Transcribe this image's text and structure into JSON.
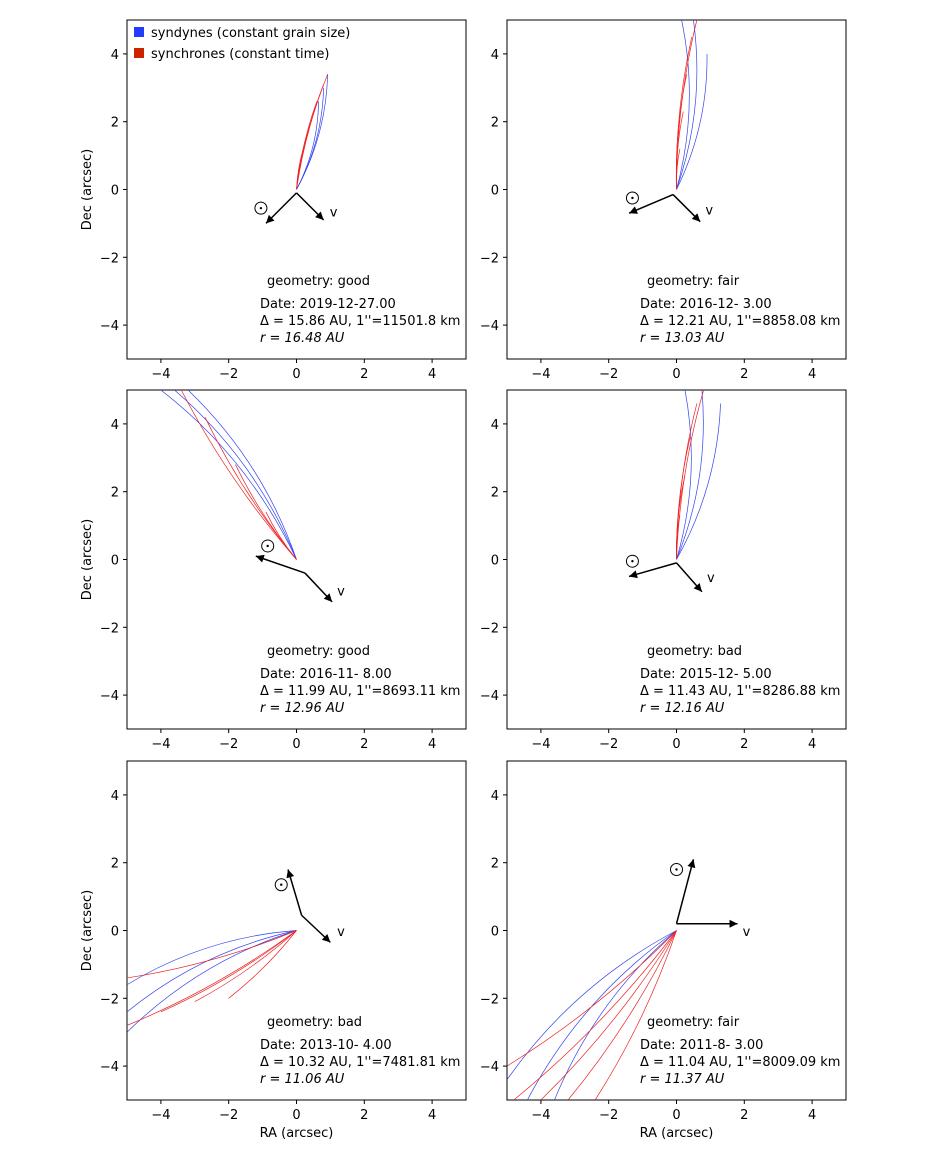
{
  "legend": {
    "items": [
      {
        "label": "syndynes (constant grain size)",
        "color": "#1f3cff"
      },
      {
        "label": "synchrones (constant time)",
        "color": "#cc2200"
      }
    ],
    "placement": "upper-left of first panel"
  },
  "colors": {
    "syndyne": "#3344ee",
    "synchrone": "#ee2222"
  },
  "velocity_label": "v",
  "sun_symbol": "sun-symbol",
  "chart_data": [
    {
      "type": "line",
      "xlabel": "",
      "ylabel": "Dec  (arcsec)",
      "xlim": [
        -5,
        5
      ],
      "ylim": [
        -5,
        5
      ],
      "xticks": [
        "−4",
        "−2",
        "0",
        "2",
        "4"
      ],
      "yticks": [
        "−4",
        "−2",
        "0",
        "2",
        "4"
      ],
      "geometry": "geometry: good",
      "date": "Date: 2019-12-27.00",
      "delta": "Δ =  15.86 AU, 1''=11501.8 km",
      "r": "r =  16.48 AU",
      "sun_arrow": {
        "from": [
          0,
          -0.1
        ],
        "to": [
          -0.9,
          -1.0
        ]
      },
      "sun_label_pos": [
        -1.05,
        -0.55
      ],
      "v_arrow": {
        "from": [
          0,
          -0.1
        ],
        "to": [
          0.8,
          -0.9
        ]
      },
      "v_label_pos": [
        0.98,
        -0.68
      ],
      "syndyne_ends": [
        [
          0.65,
          2.6
        ],
        [
          0.8,
          3.0
        ],
        [
          0.92,
          3.4
        ]
      ],
      "synchrone_ends": [
        [
          0.2,
          1.2
        ],
        [
          0.4,
          1.9
        ],
        [
          0.6,
          2.6
        ],
        [
          0.8,
          3.1
        ],
        [
          0.92,
          3.4
        ]
      ]
    },
    {
      "type": "line",
      "xlabel": "",
      "ylabel": "",
      "xlim": [
        -5,
        5
      ],
      "ylim": [
        -5,
        5
      ],
      "xticks": [
        "−4",
        "−2",
        "0",
        "2",
        "4"
      ],
      "yticks": [
        "−4",
        "−2",
        "0",
        "2",
        "4"
      ],
      "geometry": "geometry: fair",
      "date": "Date: 2016-12- 3.00",
      "delta": "Δ =  12.21 AU, 1''=8858.08 km",
      "r": "r =  13.03 AU",
      "sun_arrow": {
        "from": [
          -0.1,
          -0.15
        ],
        "to": [
          -1.4,
          -0.7
        ]
      },
      "sun_label_pos": [
        -1.3,
        -0.25
      ],
      "v_arrow": {
        "from": [
          -0.1,
          -0.15
        ],
        "to": [
          0.7,
          -0.95
        ]
      },
      "v_label_pos": [
        0.85,
        -0.62
      ],
      "syndyne_ends": [
        [
          0.15,
          5.0
        ],
        [
          0.5,
          5.0
        ],
        [
          0.9,
          4.0
        ]
      ],
      "synchrone_ends": [
        [
          0.1,
          1.2
        ],
        [
          0.2,
          2.3
        ],
        [
          0.3,
          3.4
        ],
        [
          0.45,
          4.5
        ],
        [
          0.6,
          5.0
        ]
      ]
    },
    {
      "type": "line",
      "xlabel": "",
      "ylabel": "Dec  (arcsec)",
      "xlim": [
        -5,
        5
      ],
      "ylim": [
        -5,
        5
      ],
      "xticks": [
        "−4",
        "−2",
        "0",
        "2",
        "4"
      ],
      "yticks": [
        "−4",
        "−2",
        "0",
        "2",
        "4"
      ],
      "geometry": "geometry: good",
      "date": "Date: 2016-11- 8.00",
      "delta": "Δ =  11.99 AU, 1''=8693.11 km",
      "r": "r =  12.96 AU",
      "sun_arrow": {
        "from": [
          0.25,
          -0.4
        ],
        "to": [
          -1.2,
          0.1
        ]
      },
      "sun_label_pos": [
        -0.85,
        0.4
      ],
      "v_arrow": {
        "from": [
          0.25,
          -0.4
        ],
        "to": [
          1.05,
          -1.25
        ]
      },
      "v_label_pos": [
        1.2,
        -0.95
      ],
      "syndyne_ends": [
        [
          -3.2,
          5.0
        ],
        [
          -3.6,
          5.0
        ],
        [
          -4.0,
          5.0
        ]
      ],
      "synchrone_ends": [
        [
          -0.9,
          1.4
        ],
        [
          -1.8,
          2.8
        ],
        [
          -2.7,
          4.2
        ],
        [
          -3.4,
          5.0
        ]
      ]
    },
    {
      "type": "line",
      "xlabel": "",
      "ylabel": "",
      "xlim": [
        -5,
        5
      ],
      "ylim": [
        -5,
        5
      ],
      "xticks": [
        "−4",
        "−2",
        "0",
        "2",
        "4"
      ],
      "yticks": [
        "−4",
        "−2",
        "0",
        "2",
        "4"
      ],
      "geometry": "geometry: bad",
      "date": "Date: 2015-12- 5.00",
      "delta": "Δ =  11.43 AU, 1''=8286.88 km",
      "r": "r =  12.16 AU",
      "sun_arrow": {
        "from": [
          0,
          -0.1
        ],
        "to": [
          -1.4,
          -0.5
        ]
      },
      "sun_label_pos": [
        -1.3,
        -0.05
      ],
      "v_arrow": {
        "from": [
          0,
          -0.1
        ],
        "to": [
          0.75,
          -0.95
        ]
      },
      "v_label_pos": [
        0.9,
        -0.55
      ],
      "syndyne_ends": [
        [
          0.25,
          5.0
        ],
        [
          0.75,
          5.0
        ],
        [
          1.3,
          4.6
        ]
      ],
      "synchrone_ends": [
        [
          0.1,
          1.3
        ],
        [
          0.25,
          2.5
        ],
        [
          0.4,
          3.6
        ],
        [
          0.6,
          4.6
        ],
        [
          0.8,
          5.0
        ]
      ]
    },
    {
      "type": "line",
      "xlabel": "RA (arcsec)",
      "ylabel": "Dec  (arcsec)",
      "xlim": [
        -5,
        5
      ],
      "ylim": [
        -5,
        5
      ],
      "xticks": [
        "−4",
        "−2",
        "0",
        "2",
        "4"
      ],
      "yticks": [
        "−4",
        "−2",
        "0",
        "2",
        "4"
      ],
      "geometry": "geometry: bad",
      "date": "Date: 2013-10- 4.00",
      "delta": "Δ =  10.32 AU, 1''=7481.81 km",
      "r": "r =  11.06 AU",
      "sun_arrow": {
        "from": [
          0.15,
          0.45
        ],
        "to": [
          -0.25,
          1.8
        ]
      },
      "sun_label_pos": [
        -0.45,
        1.35
      ],
      "v_arrow": {
        "from": [
          0.15,
          0.45
        ],
        "to": [
          1.0,
          -0.35
        ]
      },
      "v_label_pos": [
        1.2,
        -0.05
      ],
      "syndyne_ends": [
        [
          -5.0,
          -1.6
        ],
        [
          -5.0,
          -2.4
        ],
        [
          -5.0,
          -3.0
        ]
      ],
      "synchrone_ends": [
        [
          -2.0,
          -2.0
        ],
        [
          -3.0,
          -2.1
        ],
        [
          -4.0,
          -2.4
        ],
        [
          -5.0,
          -2.8
        ],
        [
          -5.0,
          -1.4
        ]
      ]
    },
    {
      "type": "line",
      "xlabel": "RA (arcsec)",
      "ylabel": "",
      "xlim": [
        -5,
        5
      ],
      "ylim": [
        -5,
        5
      ],
      "xticks": [
        "−4",
        "−2",
        "0",
        "2",
        "4"
      ],
      "yticks": [
        "−4",
        "−2",
        "0",
        "2",
        "4"
      ],
      "geometry": "geometry: fair",
      "date": "Date: 2011-8- 3.00",
      "delta": "Δ =  11.04 AU, 1''=8009.09 km",
      "r": "r =  11.37 AU",
      "sun_arrow": {
        "from": [
          0,
          0.2
        ],
        "to": [
          0.5,
          2.1
        ]
      },
      "sun_label_pos": [
        0,
        1.8
      ],
      "v_arrow": {
        "from": [
          0,
          0.2
        ],
        "to": [
          1.8,
          0.2
        ]
      },
      "v_label_pos": [
        1.95,
        -0.05
      ],
      "syndyne_ends": [
        [
          -3.6,
          -5.0
        ],
        [
          -4.4,
          -5.0
        ],
        [
          -5.0,
          -4.4
        ]
      ],
      "synchrone_ends": [
        [
          -2.4,
          -5.0
        ],
        [
          -3.2,
          -5.0
        ],
        [
          -4.0,
          -5.0
        ],
        [
          -4.8,
          -5.0
        ],
        [
          -5.0,
          -4.0
        ]
      ]
    }
  ]
}
